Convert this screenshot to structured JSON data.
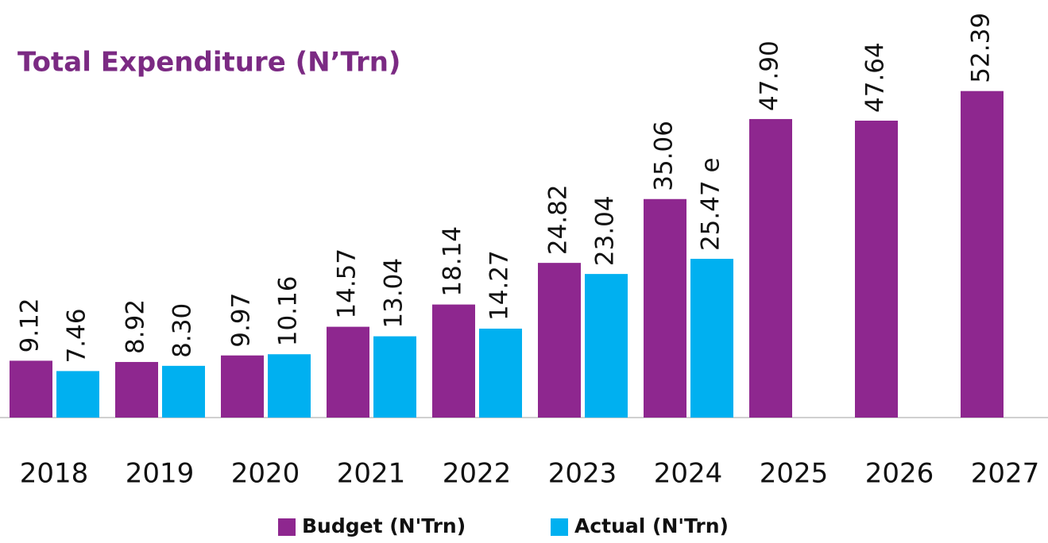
{
  "chart_data": {
    "type": "bar",
    "title": "Total Expenditure (N’Trn)",
    "categories": [
      "2018",
      "2019",
      "2020",
      "2021",
      "2022",
      "2023",
      "2024",
      "2025",
      "2026",
      "2027"
    ],
    "series": [
      {
        "name": "Budget (N'Trn)",
        "color": "#8e278f",
        "values": [
          9.12,
          8.92,
          9.97,
          14.57,
          18.14,
          24.82,
          35.06,
          47.9,
          47.64,
          52.39
        ],
        "value_labels": [
          "9.12",
          "8.92",
          "9.97",
          "14.57",
          "18.14",
          "24.82",
          "35.06",
          "47.90",
          "47.64",
          "52.39"
        ]
      },
      {
        "name": "Actual (N'Trn)",
        "color": "#00b0f0",
        "values": [
          7.46,
          8.3,
          10.16,
          13.04,
          14.27,
          23.04,
          25.47,
          null,
          null,
          null
        ],
        "value_labels": [
          "7.46",
          "8.30",
          "10.16",
          "13.04",
          "14.27",
          "23.04",
          "25.47 e",
          null,
          null,
          null
        ]
      }
    ],
    "ylim": [
      0,
      67
    ],
    "legend": "bottom"
  }
}
